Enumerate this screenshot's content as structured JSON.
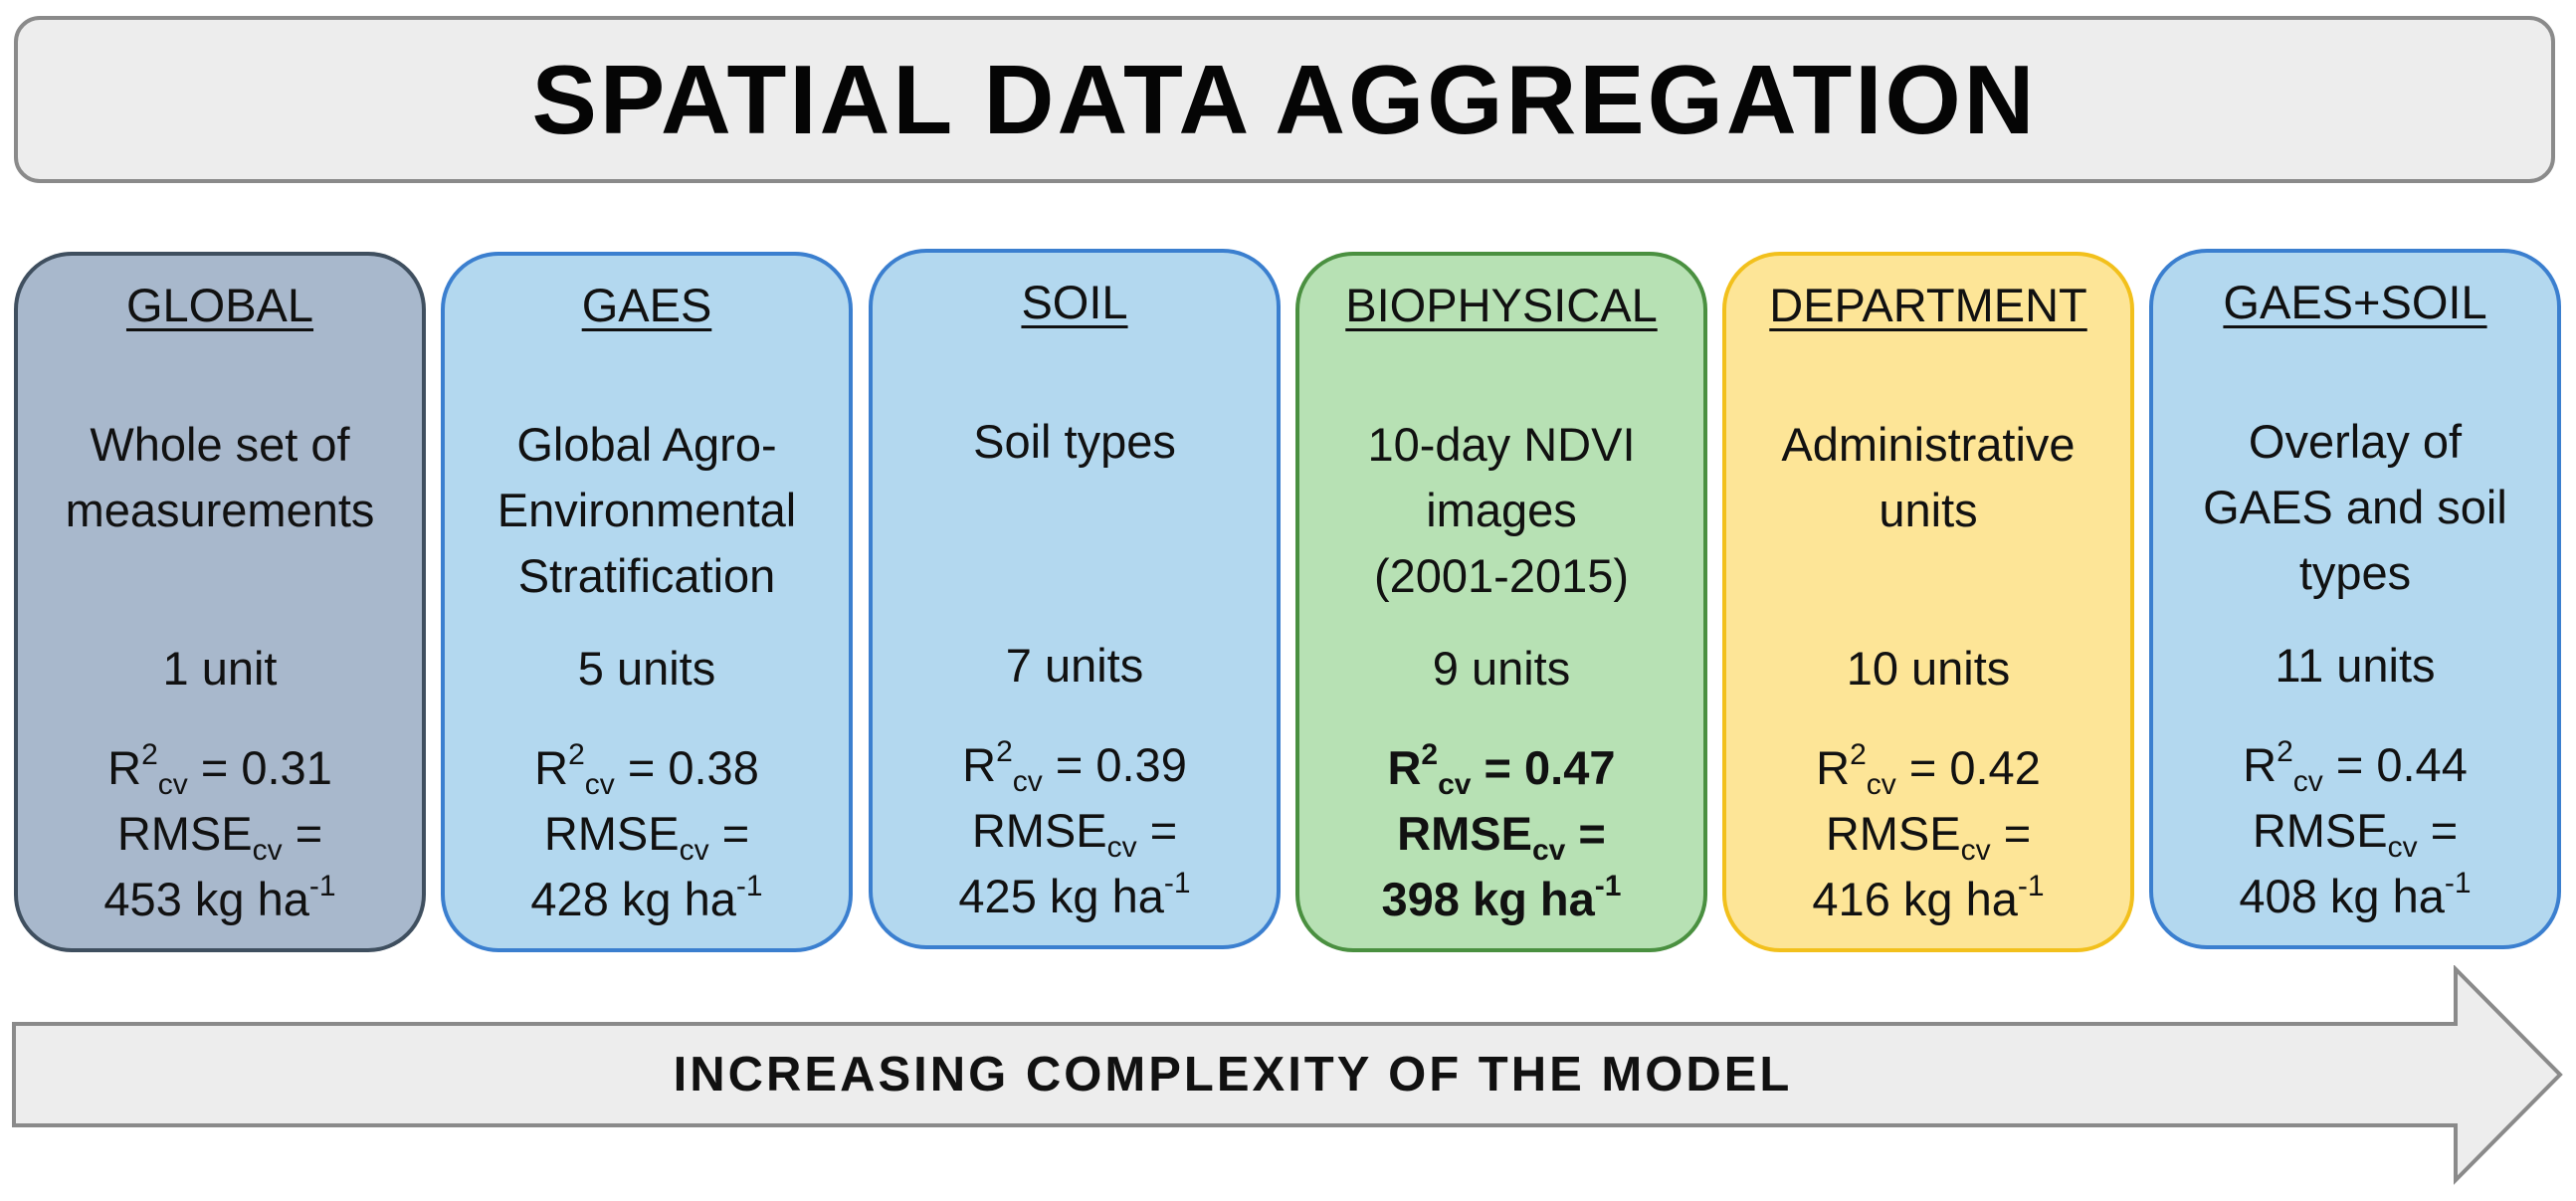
{
  "title": "SPATIAL DATA AGGREGATION",
  "colors": {
    "grey_fill": "#a8b8cc",
    "grey_border": "#3f4f5f",
    "blue_fill": "#b3d8ef",
    "blue_border": "#3b7fcf",
    "green_fill": "#b7e1b4",
    "green_border": "#4a9040",
    "yellow_fill": "#fde597",
    "yellow_border": "#f2c01c",
    "banner_fill": "#ededed",
    "banner_border": "#8a8a8a"
  },
  "cards": [
    {
      "title": "GLOBAL",
      "desc": [
        "Whole set of",
        "measurements"
      ],
      "units": "1 unit",
      "r2_base": "R",
      "r2_sup": "2",
      "r2_sub": "cv",
      "r2_value": " = 0.31",
      "rmse_base": "RMSE",
      "rmse_sub": "cv",
      "rmse_eq": " =",
      "rmse_value": "453 kg ha",
      "rmse_sup": "-1",
      "highlight": false
    },
    {
      "title": "GAES",
      "desc": [
        "Global Agro-",
        "Environmental",
        "Stratification"
      ],
      "units": "5 units",
      "r2_base": "R",
      "r2_sup": "2",
      "r2_sub": "cv",
      "r2_value": " = 0.38",
      "rmse_base": "RMSE",
      "rmse_sub": "cv",
      "rmse_eq": " =",
      "rmse_value": "428 kg ha",
      "rmse_sup": "-1",
      "highlight": false
    },
    {
      "title": "SOIL",
      "desc": [
        "Soil types"
      ],
      "units": "7 units",
      "r2_base": "R",
      "r2_sup": "2",
      "r2_sub": "cv",
      "r2_value": " = 0.39",
      "rmse_base": "RMSE",
      "rmse_sub": "cv",
      "rmse_eq": " =",
      "rmse_value": "425 kg ha",
      "rmse_sup": "-1",
      "highlight": false
    },
    {
      "title": "BIOPHYSICAL",
      "desc": [
        "10-day NDVI",
        "images",
        "(2001-2015)"
      ],
      "units": "9 units",
      "r2_base": "R",
      "r2_sup": "2",
      "r2_sub": "cv",
      "r2_value": " = 0.47",
      "rmse_base": "RMSE",
      "rmse_sub": "cv",
      "rmse_eq": " =",
      "rmse_value": "398 kg ha",
      "rmse_sup": "-1",
      "highlight": true
    },
    {
      "title": "DEPARTMENT",
      "desc": [
        "Administrative",
        "units"
      ],
      "units": "10 units",
      "r2_base": "R",
      "r2_sup": "2",
      "r2_sub": "cv",
      "r2_value": " = 0.42",
      "rmse_base": "RMSE",
      "rmse_sub": "cv",
      "rmse_eq": " =",
      "rmse_value": "416 kg ha",
      "rmse_sup": "-1",
      "highlight": false
    },
    {
      "title": "GAES+SOIL",
      "desc": [
        "Overlay of",
        "GAES and soil",
        "types"
      ],
      "units": "11 units",
      "r2_base": "R",
      "r2_sup": "2",
      "r2_sub": "cv",
      "r2_value": " = 0.44",
      "rmse_base": "RMSE",
      "rmse_sub": "cv",
      "rmse_eq": " =",
      "rmse_value": "408 kg ha",
      "rmse_sup": "-1",
      "highlight": false
    }
  ],
  "arrow_label": "INCREASING COMPLEXITY OF THE MODEL"
}
